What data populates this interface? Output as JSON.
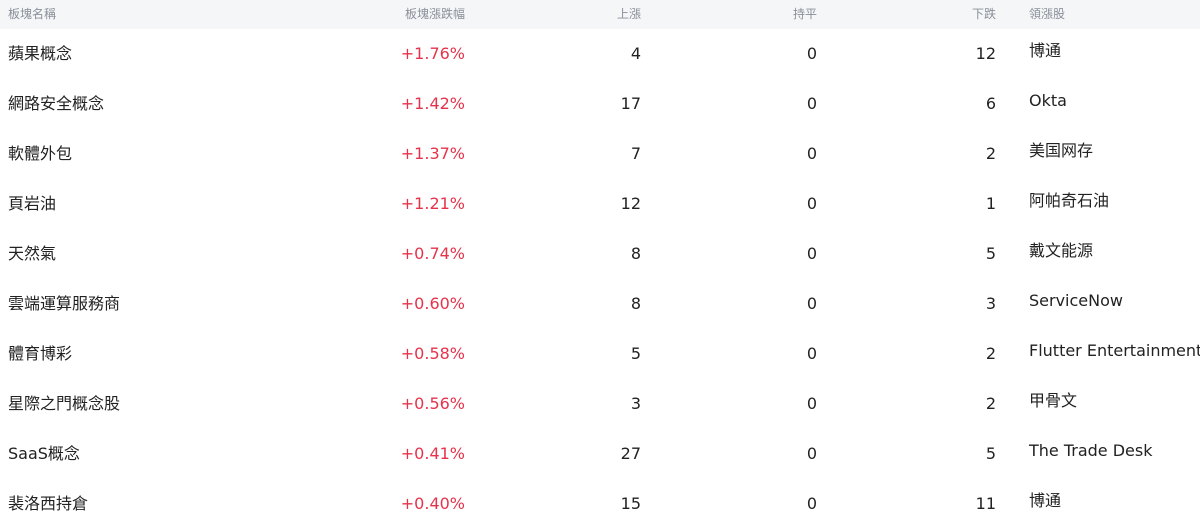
{
  "colors": {
    "positive": "#e5334b",
    "header_bg": "#f5f6f8",
    "header_text": "#8a8f99"
  },
  "header": {
    "name": "板塊名稱",
    "change": "板塊漲跌幅",
    "up": "上漲",
    "flat": "持平",
    "down": "下跌",
    "leader": "領漲股"
  },
  "rows": [
    {
      "name": "蘋果概念",
      "change": "+1.76%",
      "up": "4",
      "flat": "0",
      "down": "12",
      "leader": "博通"
    },
    {
      "name": "網路安全概念",
      "change": "+1.42%",
      "up": "17",
      "flat": "0",
      "down": "6",
      "leader": "Okta"
    },
    {
      "name": "軟體外包",
      "change": "+1.37%",
      "up": "7",
      "flat": "0",
      "down": "2",
      "leader": "美国网存"
    },
    {
      "name": "頁岩油",
      "change": "+1.21%",
      "up": "12",
      "flat": "0",
      "down": "1",
      "leader": "阿帕奇石油"
    },
    {
      "name": "天然氣",
      "change": "+0.74%",
      "up": "8",
      "flat": "0",
      "down": "5",
      "leader": "戴文能源"
    },
    {
      "name": "雲端運算服務商",
      "change": "+0.60%",
      "up": "8",
      "flat": "0",
      "down": "3",
      "leader": "ServiceNow"
    },
    {
      "name": "體育博彩",
      "change": "+0.58%",
      "up": "5",
      "flat": "0",
      "down": "2",
      "leader": "Flutter Entertainment"
    },
    {
      "name": "星際之門概念股",
      "change": "+0.56%",
      "up": "3",
      "flat": "0",
      "down": "2",
      "leader": "甲骨文"
    },
    {
      "name": "SaaS概念",
      "change": "+0.41%",
      "up": "27",
      "flat": "0",
      "down": "5",
      "leader": "The Trade Desk"
    },
    {
      "name": "裴洛西持倉",
      "change": "+0.40%",
      "up": "15",
      "flat": "0",
      "down": "11",
      "leader": "博通"
    }
  ]
}
